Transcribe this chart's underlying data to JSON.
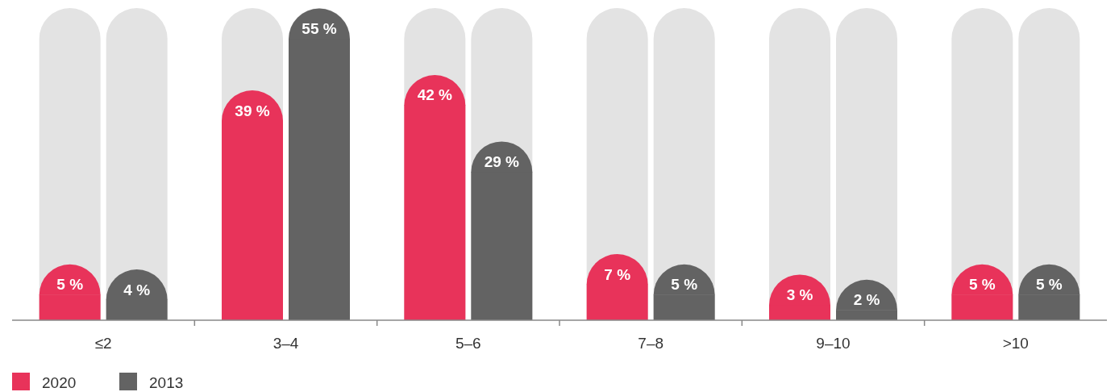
{
  "chart_data": {
    "type": "bar",
    "categories": [
      "≤2",
      "3–4",
      "5–6",
      "7–8",
      "9–10",
      ">10"
    ],
    "series": [
      {
        "name": "2020",
        "color": "#e8335a",
        "values": [
          5,
          39,
          42,
          7,
          3,
          5
        ],
        "value_labels": [
          "5 %",
          "39 %",
          "42 %",
          "7 %",
          "3 %",
          "5 %"
        ]
      },
      {
        "name": "2013",
        "color": "#636363",
        "values": [
          4,
          55,
          29,
          5,
          2,
          5
        ],
        "value_labels": [
          "4 %",
          "55 %",
          "29 %",
          "5 %",
          "2 %",
          "5 %"
        ]
      }
    ],
    "legend": "bottom left",
    "grid": false
  }
}
